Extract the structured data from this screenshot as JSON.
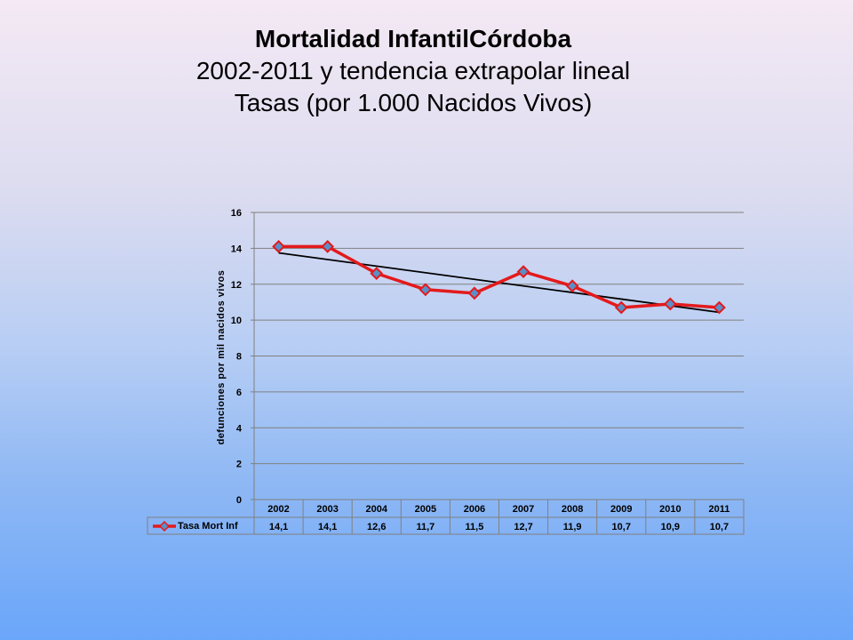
{
  "title": {
    "line1": "Mortalidad InfantilCórdoba",
    "line2": "2002-2011 y tendencia extrapolar lineal",
    "line3": "Tasas (por 1.000 Nacidos Vivos)"
  },
  "chart_data": {
    "type": "line",
    "ylabel": "defunciones por mil nacidos vivos",
    "ylim": [
      0,
      16
    ],
    "yticks": [
      0,
      2,
      4,
      6,
      8,
      10,
      12,
      14,
      16
    ],
    "categories": [
      "2002",
      "2003",
      "2004",
      "2005",
      "2006",
      "2007",
      "2008",
      "2009",
      "2010",
      "2011"
    ],
    "series": [
      {
        "name": "Tasa Mort Inf",
        "values": [
          14.1,
          14.1,
          12.6,
          11.7,
          11.5,
          12.7,
          11.9,
          10.7,
          10.9,
          10.7
        ],
        "labels": [
          "14,1",
          "14,1",
          "12,6",
          "11,7",
          "11,5",
          "12,7",
          "11,9",
          "10,7",
          "10,9",
          "10,7"
        ],
        "color": "#e31a1c",
        "marker_color": "#5b8fc8"
      }
    ],
    "trendline": {
      "type": "linear",
      "color": "#000000"
    },
    "grid": true,
    "legend": "data-table"
  }
}
